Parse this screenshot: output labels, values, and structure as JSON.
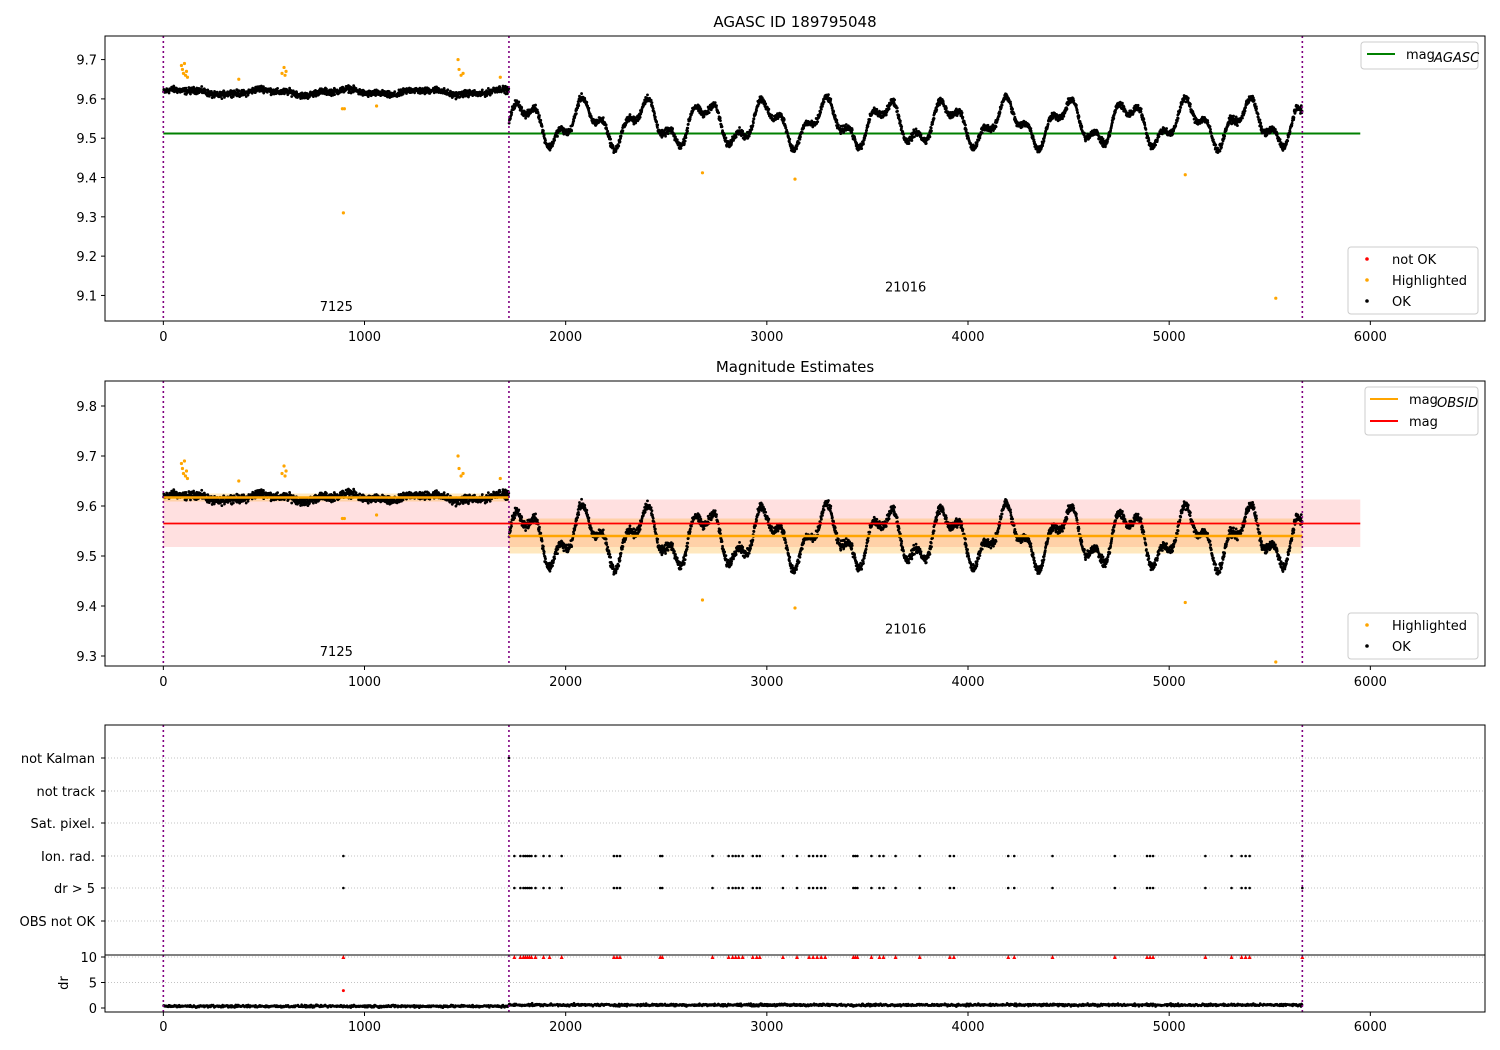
{
  "chart_data": [
    {
      "type": "scatter",
      "title": "AGASC ID 189795048",
      "xlim": [
        -290,
        6570
      ],
      "ylim": [
        9.035,
        9.76
      ],
      "xticks": [
        0,
        1000,
        2000,
        3000,
        4000,
        5000,
        6000
      ],
      "yticks": [
        9.1,
        9.2,
        9.3,
        9.4,
        9.5,
        9.6,
        9.7
      ],
      "vlines": [
        0,
        1718,
        5662
      ],
      "annotations": [
        {
          "text": "7125",
          "x": 860,
          "y": 9.06
        },
        {
          "text": "21016",
          "x": 3690,
          "y": 9.11
        }
      ],
      "hlines": [
        {
          "name": "mag_AGASC",
          "y": 9.512,
          "x0": 0,
          "x1": 5950,
          "color": "#008000"
        }
      ],
      "legend_lines": [
        {
          "label": "mag",
          "sub": "AGASC",
          "color": "#008000"
        }
      ],
      "legend_points": [
        {
          "label": "not OK",
          "color": "#ff0000"
        },
        {
          "label": "Highlighted",
          "color": "#ffa500"
        },
        {
          "label": "OK",
          "color": "#000000"
        }
      ],
      "highlighted": [
        [
          90,
          9.685
        ],
        [
          95,
          9.675
        ],
        [
          100,
          9.665
        ],
        [
          105,
          9.69
        ],
        [
          110,
          9.66
        ],
        [
          115,
          9.67
        ],
        [
          120,
          9.655
        ],
        [
          375,
          9.65
        ],
        [
          590,
          9.665
        ],
        [
          600,
          9.68
        ],
        [
          605,
          9.66
        ],
        [
          610,
          9.67
        ],
        [
          890,
          9.575
        ],
        [
          900,
          9.575
        ],
        [
          895,
          9.31
        ],
        [
          1060,
          9.582
        ],
        [
          1465,
          9.7
        ],
        [
          1470,
          9.675
        ],
        [
          1480,
          9.66
        ],
        [
          1490,
          9.665
        ],
        [
          1675,
          9.655
        ],
        [
          2680,
          9.412
        ],
        [
          3140,
          9.396
        ],
        [
          5080,
          9.407
        ],
        [
          5530,
          9.093
        ]
      ],
      "series": [
        {
          "name": "obs 7125",
          "x0": 0,
          "x1": 1718,
          "base": 9.617,
          "amp": 0.006,
          "period": 400,
          "noise": 0.012
        },
        {
          "name": "obs 21016",
          "x0": 1718,
          "x1": 5662,
          "base": 9.538,
          "amp": 0.045,
          "period": 300,
          "noise": 0.013
        }
      ]
    },
    {
      "type": "scatter",
      "title": "Magnitude Estimates",
      "xlim": [
        -290,
        6570
      ],
      "ylim": [
        9.28,
        9.85
      ],
      "xticks": [
        0,
        1000,
        2000,
        3000,
        4000,
        5000,
        6000
      ],
      "yticks": [
        9.3,
        9.4,
        9.5,
        9.6,
        9.7,
        9.8
      ],
      "vlines": [
        0,
        1718,
        5662
      ],
      "annotations": [
        {
          "text": "7125",
          "x": 860,
          "y": 9.3
        },
        {
          "text": "21016",
          "x": 3690,
          "y": 9.345
        }
      ],
      "mag": {
        "y": 9.565,
        "lo": 9.518,
        "hi": 9.613,
        "x0": 0,
        "x1": 5950,
        "color": "#ff0000"
      },
      "mag_obsid": [
        {
          "x0": 0,
          "x1": 1718,
          "y": 9.617,
          "lo": 9.609,
          "hi": 9.625
        },
        {
          "x0": 1718,
          "x1": 5662,
          "y": 9.54,
          "lo": 9.505,
          "hi": 9.575
        }
      ],
      "legend_lines": [
        {
          "label": "mag",
          "sub": "OBSID",
          "color": "#ffa500"
        },
        {
          "label": "mag",
          "sub": "",
          "color": "#ff0000"
        }
      ],
      "legend_points": [
        {
          "label": "Highlighted",
          "color": "#ffa500"
        },
        {
          "label": "OK",
          "color": "#000000"
        }
      ],
      "highlighted": [
        [
          90,
          9.685
        ],
        [
          95,
          9.675
        ],
        [
          100,
          9.665
        ],
        [
          105,
          9.69
        ],
        [
          110,
          9.66
        ],
        [
          115,
          9.67
        ],
        [
          120,
          9.655
        ],
        [
          375,
          9.65
        ],
        [
          590,
          9.665
        ],
        [
          600,
          9.68
        ],
        [
          605,
          9.66
        ],
        [
          610,
          9.67
        ],
        [
          890,
          9.575
        ],
        [
          900,
          9.575
        ],
        [
          1060,
          9.582
        ],
        [
          1465,
          9.7
        ],
        [
          1470,
          9.675
        ],
        [
          1480,
          9.66
        ],
        [
          1490,
          9.665
        ],
        [
          1675,
          9.655
        ],
        [
          2680,
          9.412
        ],
        [
          3140,
          9.396
        ],
        [
          5080,
          9.407
        ],
        [
          5530,
          9.288
        ]
      ]
    },
    {
      "type": "scatter",
      "xlim": [
        -290,
        6570
      ],
      "flags": [
        "not Kalman",
        "not track",
        "Sat. pixel.",
        "Ion. rad.",
        "dr > 5",
        "OBS not OK"
      ],
      "flag_x": [
        895,
        1745,
        1775,
        1790,
        1800,
        1810,
        1820,
        1830,
        1850,
        1890,
        1920,
        1980,
        2240,
        2255,
        2270,
        2470,
        2480,
        2730,
        2810,
        2830,
        2845,
        2860,
        2880,
        2930,
        2950,
        2965,
        3080,
        3150,
        3210,
        3230,
        3250,
        3270,
        3290,
        3430,
        3440,
        3450,
        3520,
        3560,
        3580,
        3640,
        3760,
        3910,
        3930,
        4200,
        4230,
        4420,
        4730,
        4890,
        4905,
        4920,
        5180,
        5310,
        5360,
        5380,
        5400,
        5662
      ],
      "dr_ticks": [
        0,
        5,
        10
      ],
      "dr_ylabel": "dr",
      "xticks": [
        0,
        1000,
        2000,
        3000,
        4000,
        5000,
        6000
      ],
      "vlines": [
        0,
        1718,
        5662
      ]
    }
  ]
}
